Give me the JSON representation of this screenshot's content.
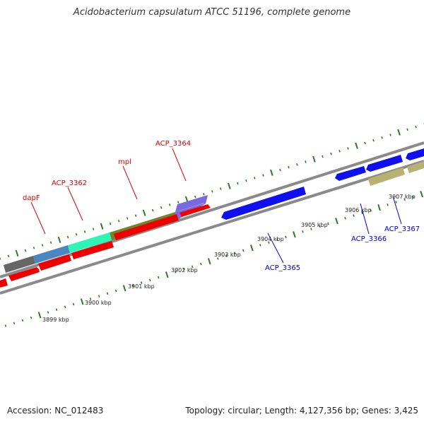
{
  "title": "Acidobacterium capsulatum ATCC 51196, complete genome",
  "footer": {
    "accession": "Accession: NC_012483",
    "topology": "Topology: circular; Length: 4,127,356 bp; Genes: 3,425"
  },
  "colors": {
    "red_gene": "#ee0000",
    "blue_gene": "#1010ee",
    "khaki_gene": "#b8b270",
    "label_red": "#dd0000",
    "label_blue": "#0000cc",
    "tick": "#2a7a2a",
    "backbone": "#8a8a8a",
    "dark_gray": "#666666",
    "steel_blue": "#4a86c0",
    "aqua": "#2ef5b4",
    "olive": "#6a8a2a",
    "lavender": "#7a6ae0"
  },
  "scale_labels": [
    "3899 kbp",
    "3900 kbp",
    "3901 kbp",
    "3902 kbp",
    "3903 kbp",
    "3904 kbp",
    "3905 kbp",
    "3906 kbp",
    "3907 kbp"
  ],
  "gene_labels": {
    "dapF": "dapF",
    "acp3362": "ACP_3362",
    "mpl": "mpl",
    "acp3364": "ACP_3364",
    "acp3365": "ACP_3365",
    "acp3366": "ACP_3366",
    "acp3367": "ACP_3367"
  }
}
